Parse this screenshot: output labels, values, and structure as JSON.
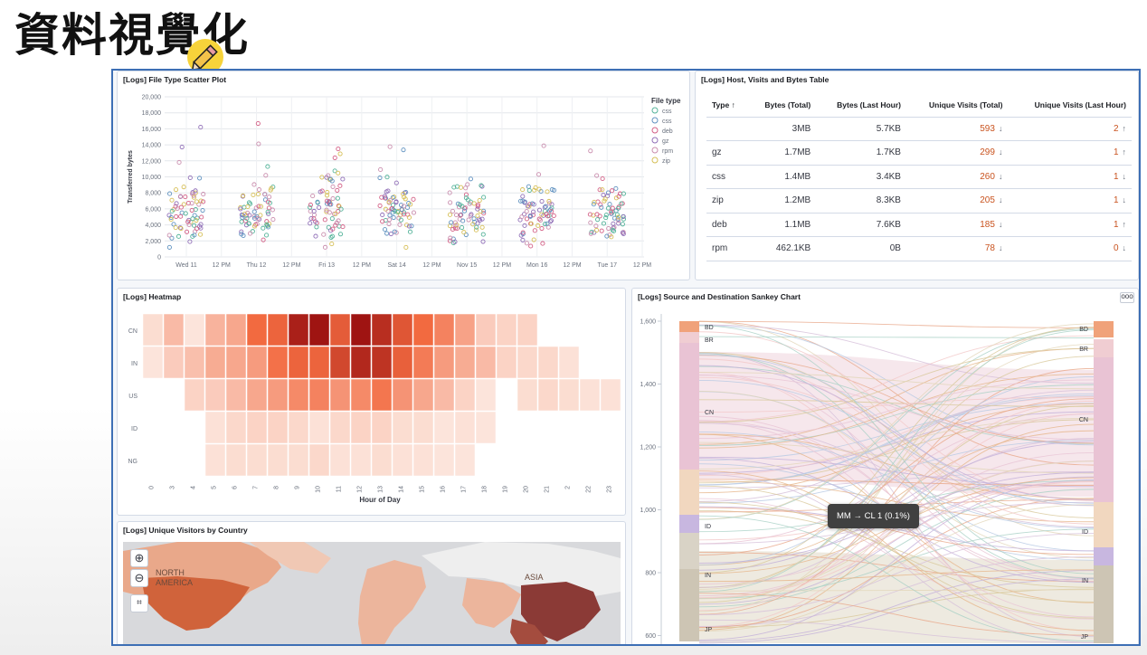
{
  "slide": {
    "title": "資料視覺化"
  },
  "scatter": {
    "title": "[Logs] File Type Scatter Plot",
    "ylabel": "Transferred bytes",
    "legend_title": "File type",
    "legend": [
      {
        "name": "css",
        "color": "#54b399",
        "shape": "circle-sq"
      },
      {
        "name": "css",
        "color": "#6092c0",
        "shape": "square"
      },
      {
        "name": "deb",
        "color": "#d36086",
        "shape": "triangle"
      },
      {
        "name": "gz",
        "color": "#9170b8",
        "shape": "diamond"
      },
      {
        "name": "rpm",
        "color": "#ca8eae",
        "shape": "diamond"
      },
      {
        "name": "zip",
        "color": "#d6bf57",
        "shape": "tri-right"
      }
    ],
    "yticks": [
      "20,000",
      "18,000",
      "16,000",
      "14,000",
      "12,000",
      "10,000",
      "8,000",
      "6,000",
      "4,000",
      "2,000",
      "0"
    ],
    "xticks": [
      "Wed 11",
      "12 PM",
      "Thu 12",
      "12 PM",
      "Fri 13",
      "12 PM",
      "Sat 14",
      "12 PM",
      "Nov 15",
      "12 PM",
      "Mon 16",
      "12 PM",
      "Tue 17",
      "12 PM"
    ]
  },
  "table": {
    "title": "[Logs] Host, Visits and Bytes Table",
    "columns": [
      "Type ↑",
      "Bytes (Total)",
      "Bytes (Last Hour)",
      "Unique Visits (Total)",
      "Unique Visits (Last Hour)"
    ],
    "rows": [
      {
        "type": "",
        "bytes_total": "3MB",
        "bytes_last": "5.7KB",
        "visits_total": "593",
        "visits_total_arrow": "↓",
        "visits_last": "2",
        "visits_last_arrow": "↑"
      },
      {
        "type": "gz",
        "bytes_total": "1.7MB",
        "bytes_last": "1.7KB",
        "visits_total": "299",
        "visits_total_arrow": "↓",
        "visits_last": "1",
        "visits_last_arrow": "↑"
      },
      {
        "type": "css",
        "bytes_total": "1.4MB",
        "bytes_last": "3.4KB",
        "visits_total": "260",
        "visits_total_arrow": "↓",
        "visits_last": "1",
        "visits_last_arrow": "↓"
      },
      {
        "type": "zip",
        "bytes_total": "1.2MB",
        "bytes_last": "8.3KB",
        "visits_total": "205",
        "visits_total_arrow": "↓",
        "visits_last": "1",
        "visits_last_arrow": "↓"
      },
      {
        "type": "deb",
        "bytes_total": "1.1MB",
        "bytes_last": "7.6KB",
        "visits_total": "185",
        "visits_total_arrow": "↓",
        "visits_last": "1",
        "visits_last_arrow": "↑"
      },
      {
        "type": "rpm",
        "bytes_total": "462.1KB",
        "bytes_last": "0B",
        "visits_total": "78",
        "visits_total_arrow": "↓",
        "visits_last": "0",
        "visits_last_arrow": "↓"
      }
    ]
  },
  "heatmap": {
    "title": "[Logs] Heatmap",
    "xlabel": "Hour of Day",
    "rows": [
      "CN",
      "IN",
      "US",
      "ID",
      "NG"
    ],
    "cols": [
      "0",
      "3",
      "4",
      "5",
      "6",
      "7",
      "8",
      "9",
      "10",
      "11",
      "12",
      "13",
      "14",
      "15",
      "16",
      "17",
      "18",
      "19",
      "20",
      "21",
      "2",
      "22",
      "23"
    ],
    "values": [
      [
        0.08,
        0.22,
        0.05,
        0.25,
        0.3,
        0.55,
        0.58,
        0.92,
        0.98,
        0.62,
        0.98,
        0.85,
        0.65,
        0.55,
        0.45,
        0.32,
        0.15,
        0.12,
        0.12,
        0,
        0,
        0,
        0
      ],
      [
        0.05,
        0.15,
        0.2,
        0.28,
        0.3,
        0.35,
        0.52,
        0.58,
        0.58,
        0.72,
        0.88,
        0.82,
        0.6,
        0.48,
        0.35,
        0.28,
        0.22,
        0.12,
        0.1,
        0.1,
        0.06,
        0,
        0
      ],
      [
        0,
        0,
        0.12,
        0.15,
        0.22,
        0.3,
        0.35,
        0.42,
        0.45,
        0.38,
        0.42,
        0.5,
        0.38,
        0.3,
        0.22,
        0.12,
        0.05,
        0,
        0.08,
        0.1,
        0.08,
        0.06,
        0.06
      ],
      [
        0,
        0,
        0,
        0.06,
        0.1,
        0.12,
        0.12,
        0.1,
        0.06,
        0.1,
        0.12,
        0.12,
        0.08,
        0.08,
        0.05,
        0.06,
        0.05,
        0,
        0,
        0,
        0,
        0,
        0
      ],
      [
        0,
        0,
        0,
        0.06,
        0.08,
        0.08,
        0.08,
        0.08,
        0.1,
        0.06,
        0.06,
        0.08,
        0.06,
        0.06,
        0.05,
        0.05,
        0,
        0,
        0,
        0,
        0,
        0,
        0
      ]
    ],
    "color_low": "#fdf0ea",
    "color_high": "#9b1010"
  },
  "map": {
    "title": "[Logs] Unique Visitors by Country",
    "labels": [
      "NORTH",
      "AMERICA",
      "ASIA"
    ]
  },
  "sankey": {
    "title": "[Logs] Source and Destination Sankey Chart",
    "options_label": "ooo",
    "yticks": [
      "1,600",
      "1,400",
      "1,200",
      "1,000",
      "800",
      "600"
    ],
    "left_labels": [
      "BD",
      "BR",
      "CN",
      "ID",
      "IN",
      "JP"
    ],
    "right_labels": [
      "BD",
      "BR",
      "CN",
      "ID",
      "IN",
      "JP"
    ],
    "tooltip": "MM → CL 1 (0.1%)"
  }
}
